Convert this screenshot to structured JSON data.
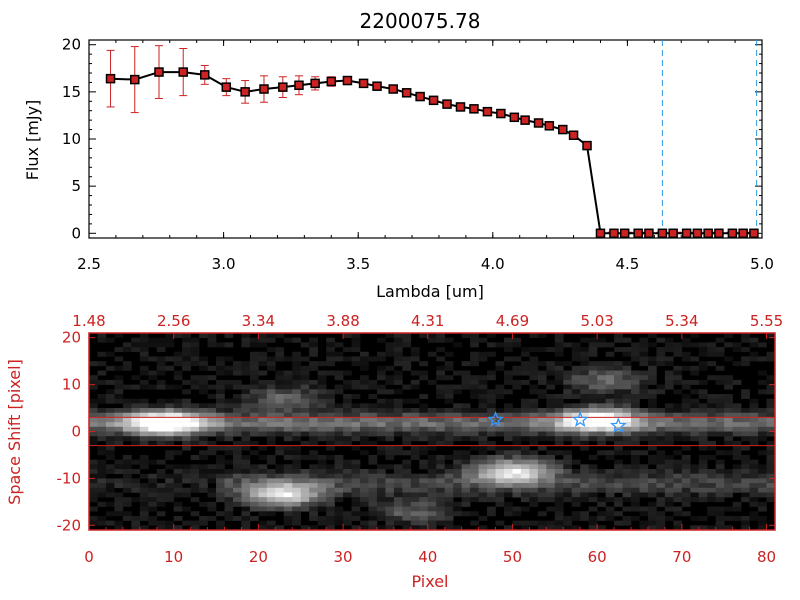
{
  "chart_data": [
    {
      "type": "line",
      "title": "2200075.78",
      "xlabel": "Lambda [um]",
      "ylabel": "Flux [mJy]",
      "xlim": [
        2.5,
        5.0
      ],
      "ylim": [
        -0.5,
        20.5
      ],
      "x_ticks": [
        "2.5",
        "3.0",
        "3.5",
        "4.0",
        "4.5",
        "5.0"
      ],
      "y_ticks": [
        "0",
        "5",
        "10",
        "15",
        "20"
      ],
      "series": [
        {
          "x": [
            2.58,
            2.67,
            2.76,
            2.85,
            2.93,
            3.01,
            3.08,
            3.15,
            3.22,
            3.28,
            3.34,
            3.4,
            3.46,
            3.52,
            3.57,
            3.63,
            3.68,
            3.73,
            3.78,
            3.83,
            3.88,
            3.93,
            3.98,
            4.03,
            4.08,
            4.12,
            4.17,
            4.21,
            4.26,
            4.3,
            4.35,
            4.4,
            4.45,
            4.49,
            4.54,
            4.58,
            4.63,
            4.67,
            4.72,
            4.76,
            4.8,
            4.84,
            4.89,
            4.93,
            4.97
          ],
          "y": [
            16.4,
            16.3,
            17.1,
            17.1,
            16.8,
            15.5,
            15.0,
            15.3,
            15.5,
            15.7,
            15.9,
            16.1,
            16.2,
            15.9,
            15.6,
            15.3,
            14.9,
            14.5,
            14.1,
            13.7,
            13.4,
            13.2,
            12.9,
            12.7,
            12.3,
            12.0,
            11.7,
            11.4,
            11.0,
            10.4,
            9.3,
            0,
            0,
            0,
            0,
            0,
            0,
            0,
            0,
            0,
            0,
            0,
            0,
            0,
            0
          ],
          "yerr": [
            3.0,
            3.5,
            2.8,
            2.5,
            1.0,
            0.9,
            1.2,
            1.4,
            1.1,
            1.0,
            0.7,
            0.5,
            0.4,
            0.3,
            0.3,
            0.3,
            0.3,
            0.3,
            0.3,
            0.3,
            0.3,
            0.3,
            0.3,
            0.3,
            0.3,
            0.3,
            0.3,
            0.3,
            0.3,
            0.3,
            0.3,
            0.3,
            0.3,
            0.3,
            0.3,
            0.3,
            0.3,
            0.3,
            0.3,
            0.3,
            0.3,
            0.3,
            0.3,
            0.3,
            0.3
          ]
        }
      ],
      "vlines": [
        4.63,
        4.98
      ],
      "grid": false
    },
    {
      "type": "heatmap",
      "xlabel": "Pixel",
      "ylabel": "Space Shift [pixel]",
      "xlim": [
        0,
        81
      ],
      "ylim": [
        -21,
        21
      ],
      "x_ticks": [
        "0",
        "10",
        "20",
        "30",
        "40",
        "50",
        "60",
        "70",
        "80"
      ],
      "top_ticks": [
        "1.48",
        "2.56",
        "3.34",
        "3.88",
        "4.31",
        "4.69",
        "5.03",
        "5.34",
        "5.55"
      ],
      "y_ticks": [
        "20",
        "10",
        "0",
        "-10",
        "-20"
      ],
      "hlines": [
        3,
        -3
      ],
      "star_markers": [
        [
          48,
          2.5
        ],
        [
          58,
          2.5
        ],
        [
          62.5,
          1.2
        ]
      ],
      "blobs": [
        {
          "x": 9,
          "y": 1.8,
          "amp": 1.0
        },
        {
          "x": 60,
          "y": 2.5,
          "amp": 0.9
        },
        {
          "x": 50,
          "y": -8.5,
          "amp": 0.85
        },
        {
          "x": 23,
          "y": -13.5,
          "amp": 0.8
        },
        {
          "x": 23,
          "y": 7,
          "amp": 0.35
        },
        {
          "x": 61,
          "y": 11,
          "amp": 0.35
        },
        {
          "x": 38,
          "y": -17,
          "amp": 0.3
        }
      ],
      "colors": {
        "map": "grayscale",
        "frame": "#cc2222",
        "hline": "#cc2222",
        "stars": "#3399ff"
      }
    }
  ]
}
